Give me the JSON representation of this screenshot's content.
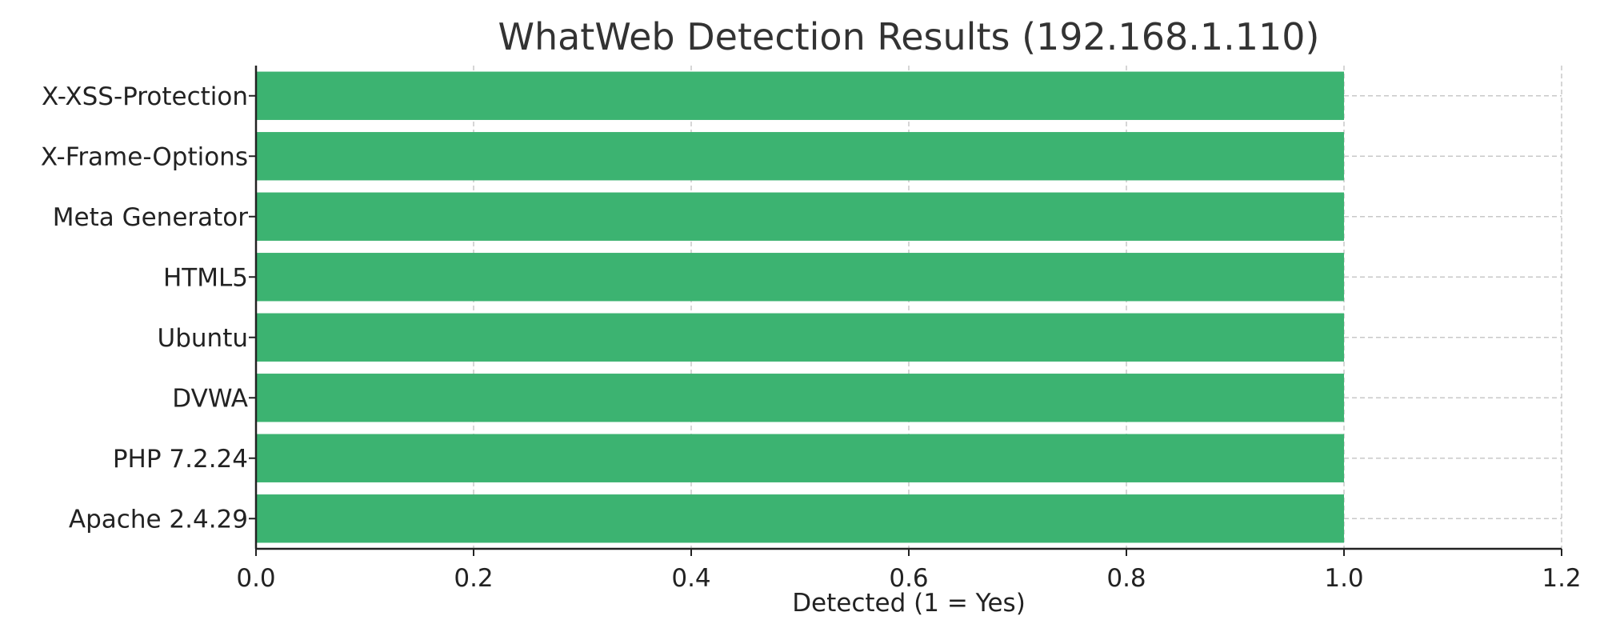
{
  "chart_data": {
    "type": "bar",
    "orientation": "horizontal",
    "title": "WhatWeb Detection Results (192.168.1.110)",
    "xlabel": "Detected (1 = Yes)",
    "ylabel": "",
    "categories": [
      "Apache 2.4.29",
      "PHP 7.2.24",
      "DVWA",
      "Ubuntu",
      "HTML5",
      "Meta Generator",
      "X-Frame-Options",
      "X-XSS-Protection"
    ],
    "values": [
      1,
      1,
      1,
      1,
      1,
      1,
      1,
      1
    ],
    "xlim": [
      0,
      1.2
    ],
    "xticks": [
      "0.0",
      "0.2",
      "0.4",
      "0.6",
      "0.8",
      "1.0",
      "1.2"
    ],
    "grid": true,
    "grid_style": "dashed",
    "bar_color": "#3cb371",
    "legend": "none"
  }
}
